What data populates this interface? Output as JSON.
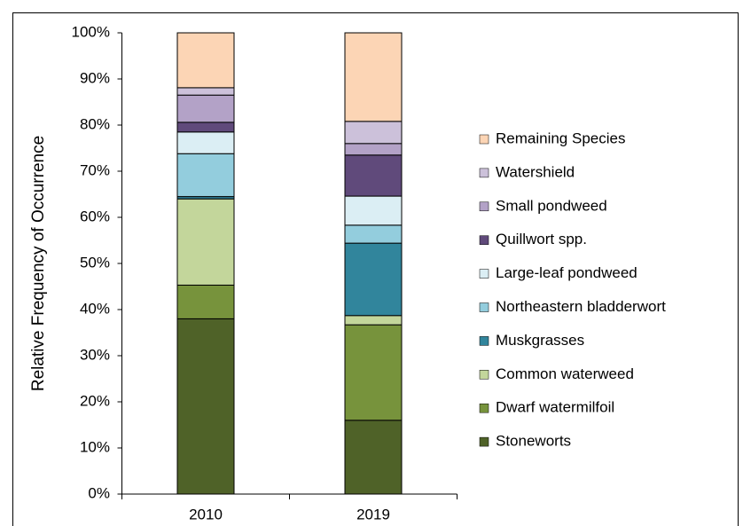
{
  "chart_data": {
    "type": "stacked_bar",
    "y_label": "Relative Frequency of Occurrence",
    "categories": [
      "2010",
      "2019"
    ],
    "ylim": [
      0,
      100
    ],
    "yticks": [
      {
        "value": 0,
        "label": "0%"
      },
      {
        "value": 10,
        "label": "10%"
      },
      {
        "value": 20,
        "label": "20%"
      },
      {
        "value": 30,
        "label": "30%"
      },
      {
        "value": 40,
        "label": "40%"
      },
      {
        "value": 50,
        "label": "50%"
      },
      {
        "value": 60,
        "label": "60%"
      },
      {
        "value": 70,
        "label": "70%"
      },
      {
        "value": 80,
        "label": "80%"
      },
      {
        "value": 90,
        "label": "90%"
      },
      {
        "value": 100,
        "label": "100%"
      }
    ],
    "series": [
      {
        "name": "Stoneworts",
        "color": "#4f6228",
        "values": [
          38,
          16
        ]
      },
      {
        "name": "Dwarf watermilfoil",
        "color": "#77933c",
        "values": [
          7.3,
          20.7
        ]
      },
      {
        "name": "Common waterweed",
        "color": "#c3d69b",
        "values": [
          18.7,
          2
        ]
      },
      {
        "name": "Muskgrasses",
        "color": "#31859c",
        "values": [
          0.5,
          15.7
        ]
      },
      {
        "name": "Northeastern bladderwort",
        "color": "#93cddd",
        "values": [
          9.3,
          3.9
        ]
      },
      {
        "name": "Large-leaf pondweed",
        "color": "#dbeef4",
        "values": [
          4.7,
          6.3
        ]
      },
      {
        "name": "Quillwort spp.",
        "color": "#604a7b",
        "values": [
          2.1,
          8.9
        ]
      },
      {
        "name": "Small pondweed",
        "color": "#b3a2c7",
        "values": [
          5.9,
          2.5
        ]
      },
      {
        "name": "Watershield",
        "color": "#ccc1da",
        "values": [
          1.6,
          4.8
        ]
      },
      {
        "name": "Remaining Species",
        "color": "#fcd5b5",
        "values": [
          11.9,
          19.2
        ]
      }
    ]
  }
}
